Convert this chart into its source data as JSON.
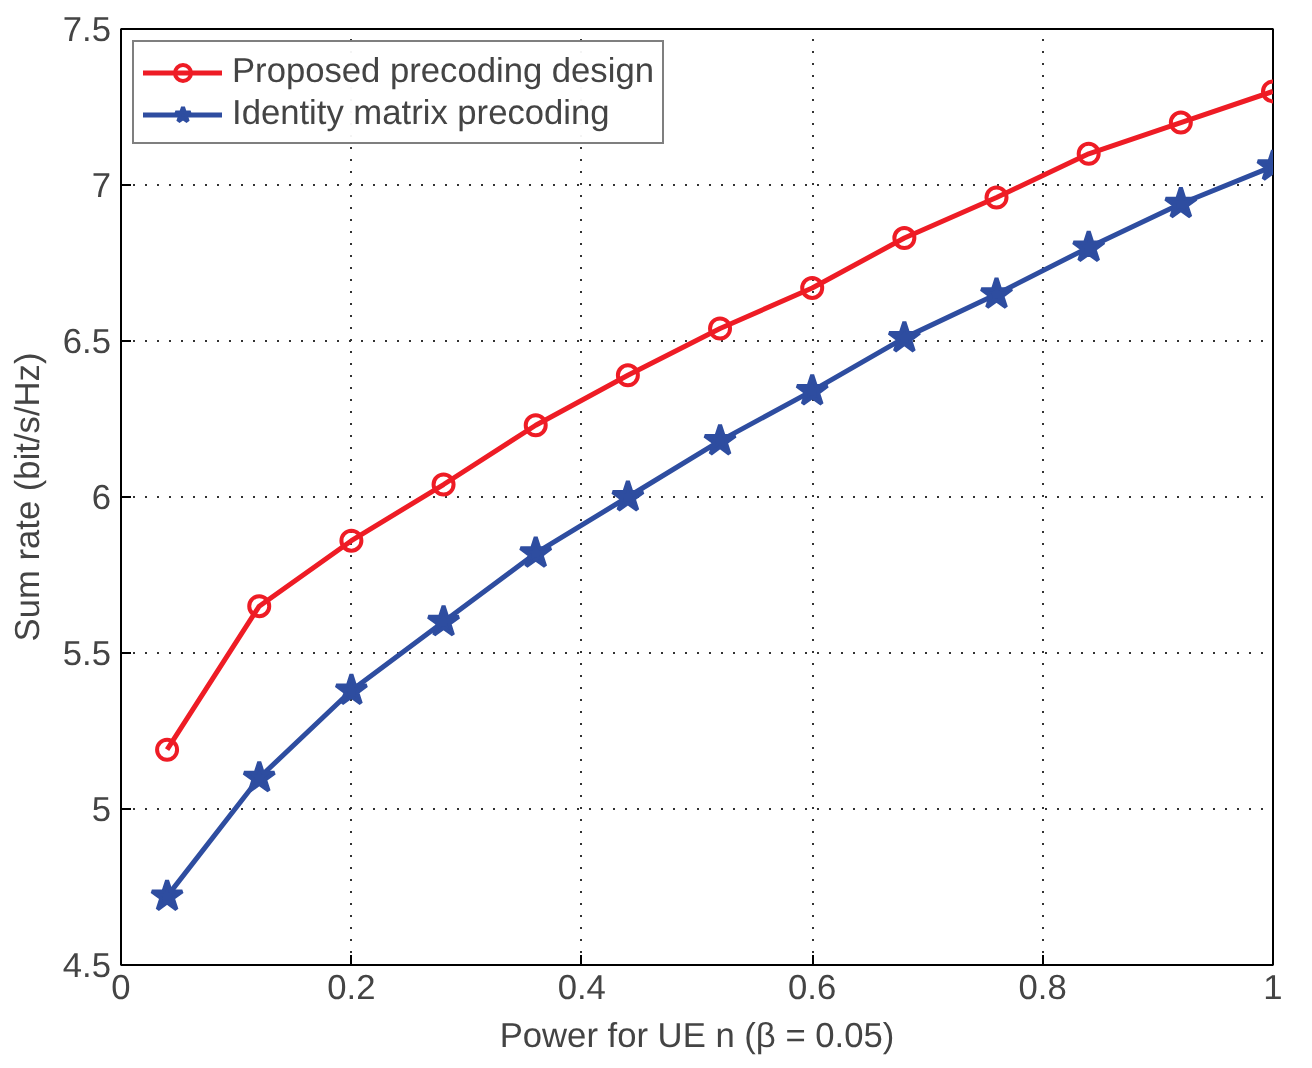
{
  "chart_data": {
    "type": "line",
    "xlabel": "Power for UE n (β = 0.05)",
    "ylabel": "Sum rate (bit/s/Hz)",
    "x": [
      0.04,
      0.12,
      0.2,
      0.28,
      0.36,
      0.44,
      0.52,
      0.6,
      0.68,
      0.76,
      0.84,
      0.92,
      1.0
    ],
    "series": [
      {
        "name": "Proposed precoding design",
        "color": "#ee1c25",
        "marker": "circle",
        "values": [
          5.19,
          5.65,
          5.86,
          6.04,
          6.23,
          6.39,
          6.54,
          6.67,
          6.83,
          6.96,
          7.1,
          7.2,
          7.3
        ]
      },
      {
        "name": "Identity matrix precoding",
        "color": "#2e4da0",
        "marker": "star",
        "values": [
          4.72,
          5.1,
          5.38,
          5.6,
          5.82,
          6.0,
          6.18,
          6.34,
          6.51,
          6.65,
          6.8,
          6.94,
          7.06
        ]
      }
    ],
    "xlim": [
      0,
      1
    ],
    "ylim": [
      4.5,
      7.5
    ],
    "xticks": [
      0,
      0.2,
      0.4,
      0.6,
      0.8,
      1
    ],
    "yticks": [
      4.5,
      5,
      5.5,
      6,
      6.5,
      7,
      7.5
    ],
    "grid": true,
    "legend": "top left",
    "line_style": "solid"
  }
}
